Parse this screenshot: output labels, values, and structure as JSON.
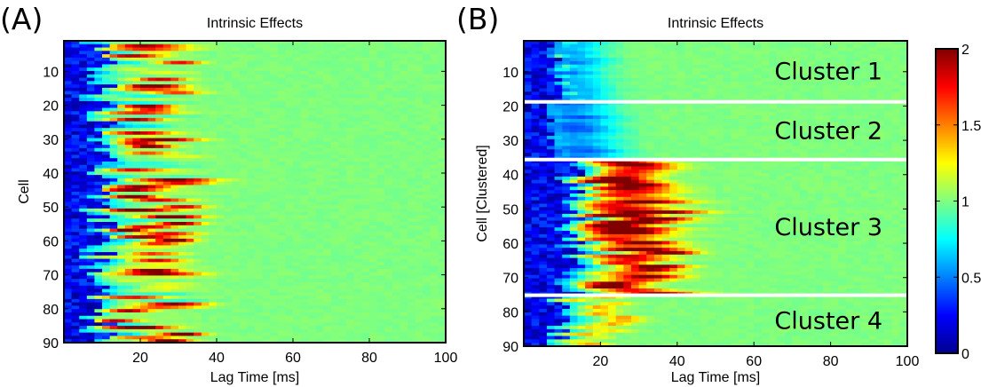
{
  "chart_data": [
    {
      "type": "heatmap",
      "panel_label": "(A)",
      "title": "Intrinsic Effects",
      "xlabel": "Lag Time [ms]",
      "ylabel": "Cell",
      "xlim": [
        0,
        100
      ],
      "ylim": [
        1,
        90
      ],
      "x_ticks": [
        "20",
        "40",
        "60",
        "80",
        "100"
      ],
      "y_ticks": [
        "10",
        "20",
        "30",
        "40",
        "50",
        "60",
        "70",
        "80",
        "90"
      ],
      "colormap": "jet",
      "color_range": [
        0,
        2
      ]
    },
    {
      "type": "heatmap",
      "panel_label": "(B)",
      "title": "Intrinsic Effects",
      "xlabel": "Lag Time [ms]",
      "ylabel": "Cell [Clustered]",
      "xlim": [
        0,
        100
      ],
      "ylim": [
        1,
        90
      ],
      "x_ticks": [
        "20",
        "40",
        "60",
        "80",
        "100"
      ],
      "y_ticks": [
        "10",
        "20",
        "30",
        "40",
        "50",
        "60",
        "70",
        "80",
        "90"
      ],
      "colormap": "jet",
      "color_range": [
        0,
        2
      ],
      "clusters": [
        {
          "label": "Cluster 1",
          "cells": [
            1,
            18
          ]
        },
        {
          "label": "Cluster 2",
          "cells": [
            19,
            35
          ]
        },
        {
          "label": "Cluster 3",
          "cells": [
            36,
            75
          ]
        },
        {
          "label": "Cluster 4",
          "cells": [
            76,
            90
          ]
        }
      ]
    }
  ],
  "colorbar": {
    "range": [
      0,
      2
    ],
    "ticks": [
      "0",
      "0.5",
      "1",
      "1.5",
      "2"
    ]
  }
}
